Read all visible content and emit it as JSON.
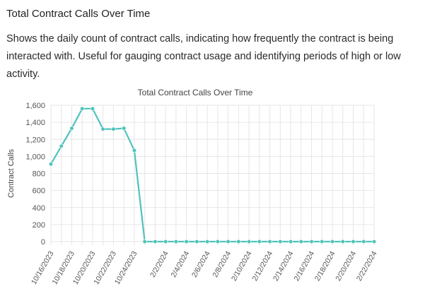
{
  "card": {
    "title": "Total Contract Calls Over Time",
    "description": "Shows the daily count of contract calls, indicating how frequently the contract is being interacted with. Useful for gauging contract usage and identifying periods of high or low activity."
  },
  "colors": {
    "line": "#4fc3bc",
    "grid": "#e6e6e6",
    "axis": "#555555"
  },
  "chart_data": {
    "type": "line",
    "title": "Total Contract Calls Over Time",
    "xlabel": "",
    "ylabel": "Contract Calls",
    "ylim": [
      0,
      1600
    ],
    "yticks": [
      0,
      200,
      400,
      600,
      800,
      1000,
      1200,
      1400,
      1600
    ],
    "ytick_labels": [
      "0",
      "200",
      "400",
      "600",
      "800",
      "1,000",
      "1,200",
      "1,400",
      "1,600"
    ],
    "grid": true,
    "x": [
      "10/16/2023",
      "10/17/2023",
      "10/18/2023",
      "10/19/2023",
      "10/20/2023",
      "10/21/2023",
      "10/22/2023",
      "10/23/2023",
      "10/24/2023",
      "10/25/2023",
      "2/1/2024",
      "2/2/2024",
      "2/3/2024",
      "2/4/2024",
      "2/5/2024",
      "2/6/2024",
      "2/7/2024",
      "2/8/2024",
      "2/9/2024",
      "2/10/2024",
      "2/11/2024",
      "2/12/2024",
      "2/13/2024",
      "2/14/2024",
      "2/15/2024",
      "2/16/2024",
      "2/17/2024",
      "2/18/2024",
      "2/19/2024",
      "2/20/2024",
      "2/21/2024",
      "2/22/2024"
    ],
    "x_tick_labels": [
      "10/16/2023",
      "10/18/2023",
      "10/20/2023",
      "10/22/2023",
      "10/24/2023",
      "2/2/2024",
      "2/4/2024",
      "2/6/2024",
      "2/8/2024",
      "2/10/2024",
      "2/12/2024",
      "2/14/2024",
      "2/16/2024",
      "2/18/2024",
      "2/20/2024",
      "2/22/2024"
    ],
    "series": [
      {
        "values": [
          910,
          1120,
          1330,
          1560,
          1560,
          1320,
          1320,
          1330,
          1070,
          0,
          0,
          0,
          0,
          0,
          0,
          0,
          0,
          0,
          0,
          0,
          0,
          0,
          0,
          0,
          0,
          0,
          0,
          0,
          0,
          0,
          0,
          0
        ]
      }
    ]
  }
}
